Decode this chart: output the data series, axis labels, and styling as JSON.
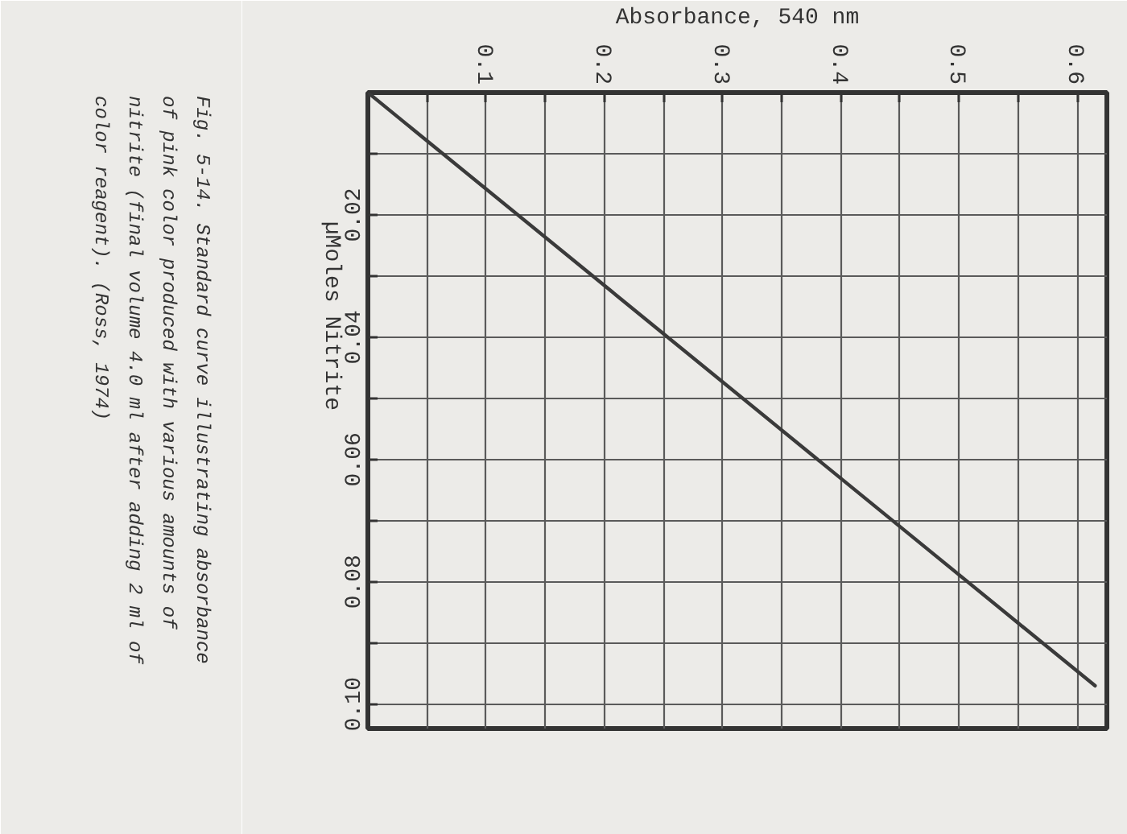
{
  "chart_data": {
    "type": "line",
    "xlabel": "Absorbance, 540 nm",
    "ylabel": "µMoles Nitrite",
    "annotations": [
      "Fig. 5-14.  Standard curve illustrating absorbance\nof pink color produced with various amounts of\nnitrite (final volume 4.0 ml after adding 2 ml of\ncolor reagent).  (Ross, 1974)"
    ],
    "x": [
      0,
      0.615
    ],
    "values": [
      0,
      0.097
    ],
    "color": "#3a3a3a",
    "xlim": [
      0,
      0.625
    ],
    "ylim": [
      0.104,
      0
    ],
    "xticks": [
      {
        "value": 0.05,
        "label": null
      },
      0.1,
      {
        "value": 0.15,
        "label": null
      },
      0.2,
      {
        "value": 0.25,
        "label": null
      },
      0.3,
      {
        "value": 0.35,
        "label": null
      },
      0.4,
      {
        "value": 0.45,
        "label": null
      },
      0.5,
      {
        "value": 0.55,
        "label": null
      },
      0.6
    ],
    "yticks": [
      {
        "value": 0.01,
        "label": null
      },
      0.02,
      {
        "value": 0.03,
        "label": null
      },
      0.04,
      {
        "value": 0.05,
        "label": null
      },
      0.06,
      {
        "value": 0.07,
        "label": null
      },
      0.08,
      {
        "value": 0.09,
        "label": null
      },
      {
        "value": 0.1,
        "label": "0.10"
      }
    ],
    "grid": true
  }
}
